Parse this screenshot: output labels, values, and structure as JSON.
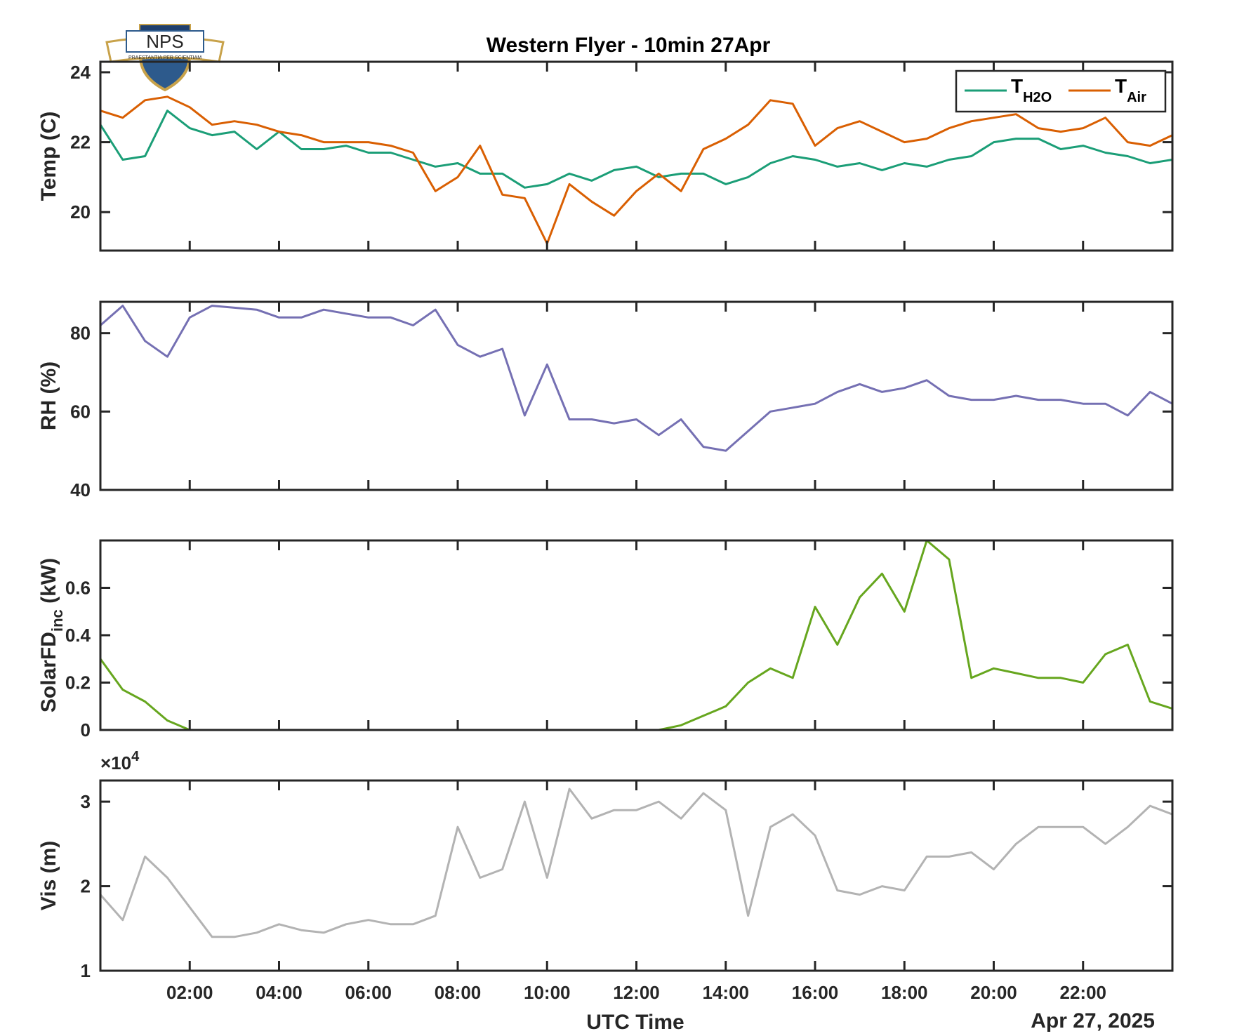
{
  "chart_data": {
    "type": "line",
    "title": "Western Flyer - 10min 27Apr",
    "xlabel": "UTC Time",
    "date_label": "Apr 27, 2025",
    "xlim": [
      0,
      24
    ],
    "xticks": [
      {
        "value": 2,
        "label": "02:00"
      },
      {
        "value": 4,
        "label": "04:00"
      },
      {
        "value": 6,
        "label": "06:00"
      },
      {
        "value": 8,
        "label": "08:00"
      },
      {
        "value": 10,
        "label": "10:00"
      },
      {
        "value": 12,
        "label": "12:00"
      },
      {
        "value": 14,
        "label": "14:00"
      },
      {
        "value": 16,
        "label": "16:00"
      },
      {
        "value": 18,
        "label": "18:00"
      },
      {
        "value": 20,
        "label": "20:00"
      },
      {
        "value": 22,
        "label": "22:00"
      }
    ],
    "grid": false,
    "logo": {
      "text": "NPS",
      "motto": "PRAESTANTIA PER SCIENTIAM"
    },
    "panels": [
      {
        "id": "temp",
        "ylabel": "Temp (C)",
        "ylim": [
          18.9,
          24.3
        ],
        "yticks": [
          20,
          22,
          24
        ],
        "legend": {
          "placement": "top-right",
          "entries": [
            {
              "main": "T",
              "sub": "H2O",
              "color": "#1b9e77"
            },
            {
              "main": "T",
              "sub": "Air",
              "color": "#d95f02"
            }
          ]
        },
        "series": [
          {
            "name": "TH2O",
            "color": "#1b9e77",
            "x": [
              0,
              0.5,
              1,
              1.5,
              2,
              2.5,
              3,
              3.5,
              4,
              4.5,
              5,
              5.5,
              6,
              6.5,
              7,
              7.5,
              8,
              8.5,
              9,
              9.5,
              10,
              10.5,
              11,
              11.5,
              12,
              12.5,
              13,
              13.5,
              14,
              14.5,
              15,
              15.5,
              16,
              16.5,
              17,
              17.5,
              18,
              18.5,
              19,
              19.5,
              20,
              20.5,
              21,
              21.5,
              22,
              22.5,
              23,
              23.5,
              24
            ],
            "y": [
              22.5,
              21.5,
              21.6,
              22.9,
              22.4,
              22.2,
              22.3,
              21.8,
              22.3,
              21.8,
              21.8,
              21.9,
              21.7,
              21.7,
              21.5,
              21.3,
              21.4,
              21.1,
              21.1,
              20.7,
              20.8,
              21.1,
              20.9,
              21.2,
              21.3,
              21.0,
              21.1,
              21.1,
              20.8,
              21.0,
              21.4,
              21.6,
              21.5,
              21.3,
              21.4,
              21.2,
              21.4,
              21.3,
              21.5,
              21.6,
              22.0,
              22.1,
              22.1,
              21.8,
              21.9,
              21.7,
              21.6,
              21.4,
              21.5
            ]
          },
          {
            "name": "TAir",
            "color": "#d95f02",
            "x": [
              0,
              0.5,
              1,
              1.5,
              2,
              2.5,
              3,
              3.5,
              4,
              4.5,
              5,
              5.5,
              6,
              6.5,
              7,
              7.5,
              8,
              8.5,
              9,
              9.5,
              10,
              10.5,
              11,
              11.5,
              12,
              12.5,
              13,
              13.5,
              14,
              14.5,
              15,
              15.5,
              16,
              16.5,
              17,
              17.5,
              18,
              18.5,
              19,
              19.5,
              20,
              20.5,
              21,
              21.5,
              22,
              22.5,
              23,
              23.5,
              24
            ],
            "y": [
              22.9,
              22.7,
              23.2,
              23.3,
              23.0,
              22.5,
              22.6,
              22.5,
              22.3,
              22.2,
              22.0,
              22.0,
              22.0,
              21.9,
              21.7,
              20.6,
              21.0,
              21.9,
              20.5,
              20.4,
              19.1,
              20.8,
              20.3,
              19.9,
              20.6,
              21.1,
              20.6,
              21.8,
              22.1,
              22.5,
              23.2,
              23.1,
              21.9,
              22.4,
              22.6,
              22.3,
              22.0,
              22.1,
              22.4,
              22.6,
              22.7,
              22.8,
              22.4,
              22.3,
              22.4,
              22.7,
              22.0,
              21.9,
              22.2
            ]
          }
        ]
      },
      {
        "id": "rh",
        "ylabel": "RH (%)",
        "ylim": [
          40,
          88
        ],
        "yticks": [
          40,
          60,
          80
        ],
        "series": [
          {
            "name": "RH",
            "color": "#7570b3",
            "x": [
              0,
              0.5,
              1,
              1.5,
              2,
              2.5,
              3,
              3.5,
              4,
              4.5,
              5,
              5.5,
              6,
              6.5,
              7,
              7.5,
              8,
              8.5,
              9,
              9.5,
              10,
              10.5,
              11,
              11.5,
              12,
              12.5,
              13,
              13.5,
              14,
              14.5,
              15,
              15.5,
              16,
              16.5,
              17,
              17.5,
              18,
              18.5,
              19,
              19.5,
              20,
              20.5,
              21,
              21.5,
              22,
              22.5,
              23,
              23.5,
              24
            ],
            "y": [
              82,
              87,
              78,
              74,
              84,
              87,
              86.5,
              86,
              84,
              84,
              86,
              85,
              84,
              84,
              82,
              86,
              77,
              74,
              76,
              59,
              72,
              58,
              58,
              57,
              58,
              54,
              58,
              51,
              50,
              55,
              60,
              61,
              62,
              65,
              67,
              65,
              66,
              68,
              64,
              63,
              63,
              64,
              63,
              63,
              62,
              62,
              59,
              65,
              62
            ]
          }
        ]
      },
      {
        "id": "solar",
        "ylabel": "SolarFD",
        "ylabel_sub": "inc",
        "ylabel_unit": "(kW)",
        "ylim": [
          0,
          0.8
        ],
        "yticks": [
          0,
          0.2,
          0.4,
          0.6
        ],
        "series": [
          {
            "name": "SolarFD",
            "color": "#66a61e",
            "x": [
              0,
              0.5,
              1,
              1.5,
              2,
              2.5,
              3,
              4,
              5,
              6,
              7,
              8,
              9,
              10,
              11,
              12,
              12.5,
              13,
              13.5,
              14,
              14.5,
              15,
              15.5,
              16,
              16.5,
              17,
              17.5,
              18,
              18.5,
              19,
              19.5,
              20,
              20.5,
              21,
              21.5,
              22,
              22.5,
              23,
              23.5,
              24
            ],
            "y": [
              0.3,
              0.17,
              0.12,
              0.04,
              0,
              0,
              0,
              0,
              0,
              0,
              0,
              0,
              0,
              0,
              0,
              0,
              0,
              0.02,
              0.06,
              0.1,
              0.2,
              0.26,
              0.22,
              0.52,
              0.36,
              0.56,
              0.66,
              0.5,
              0.8,
              0.72,
              0.22,
              0.26,
              0.24,
              0.22,
              0.22,
              0.2,
              0.32,
              0.36,
              0.12,
              0.09
            ]
          }
        ]
      },
      {
        "id": "vis",
        "ylabel": "Vis (m)",
        "ylim": [
          10000,
          32500
        ],
        "yticks": [
          10000,
          20000,
          30000
        ],
        "ytick_labels": [
          "1",
          "2",
          "3"
        ],
        "exponent_label": "×10",
        "exponent_power": "4",
        "series": [
          {
            "name": "Vis",
            "color": "#b3b3b3",
            "x": [
              0,
              0.5,
              1,
              1.5,
              2,
              2.5,
              3,
              3.5,
              4,
              4.5,
              5,
              5.5,
              6,
              6.5,
              7,
              7.5,
              8,
              8.5,
              9,
              9.5,
              10,
              10.5,
              11,
              11.5,
              12,
              12.5,
              13,
              13.5,
              14,
              14.5,
              15,
              15.5,
              16,
              16.5,
              17,
              17.5,
              18,
              18.5,
              19,
              19.5,
              20,
              20.5,
              21,
              21.5,
              22,
              22.5,
              23,
              23.5,
              24
            ],
            "y": [
              19000,
              16000,
              23500,
              21000,
              17500,
              14000,
              14000,
              14500,
              15500,
              14800,
              14500,
              15500,
              16000,
              15500,
              15500,
              16500,
              27000,
              21000,
              22000,
              30000,
              21000,
              31500,
              28000,
              29000,
              29000,
              30000,
              28000,
              31000,
              29000,
              16500,
              27000,
              28500,
              26000,
              19500,
              19000,
              20000,
              19500,
              23500,
              23500,
              24000,
              22000,
              25000,
              27000,
              27000,
              27000,
              25000,
              27000,
              29500,
              28500
            ]
          }
        ]
      }
    ]
  }
}
